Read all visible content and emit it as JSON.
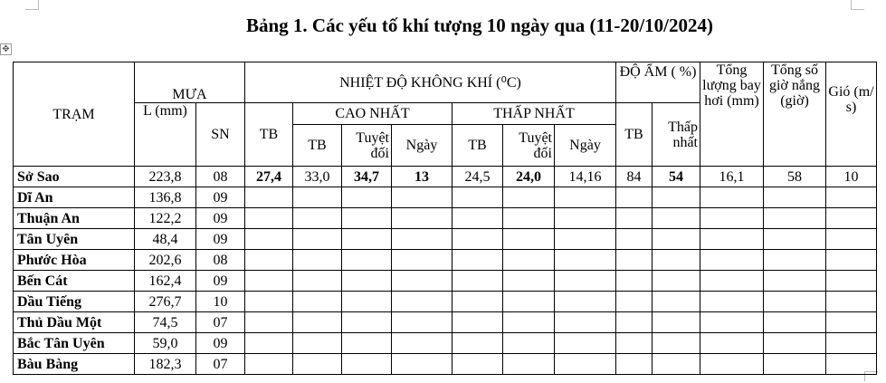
{
  "title": "Bảng 1. Các yếu tố khí tượng 10 ngày qua (11-20/10/2024)",
  "headers": {
    "tram": "TRẠM",
    "mua": "MƯA",
    "l_mm": "L (mm)",
    "sn": "SN",
    "nhiet_do": "NHIỆT ĐỘ KHÔNG KHÍ (⁰C)",
    "tb": "TB",
    "cao_nhat": "CAO NHẤT",
    "thap_nhat": "THẤP NHẤT",
    "tuyet_doi": "Tuyệt đối",
    "ngay": "Ngày",
    "do_am": "ĐỘ ẨM ( %)",
    "thap_nhat_am": "Thấp nhất",
    "bay_hoi": "Tổng lượng bay hơi (mm)",
    "gio_nang": "Tổng số giờ nắng (giờ)",
    "gio": "Gió (m/ s)"
  },
  "rows": [
    {
      "tram": "Sở Sao",
      "l": "223,8",
      "sn": "08",
      "tb": "27,4",
      "cao_tb": "33,0",
      "cao_td": "34,7",
      "cao_ngay": "13",
      "thap_tb": "24,5",
      "thap_td": "24,0",
      "thap_ngay": "14,16",
      "am_tb": "84",
      "am_min": "54",
      "bay_hoi": "16,1",
      "nang": "58",
      "gio": "10"
    },
    {
      "tram": "Dĩ An",
      "l": "136,8",
      "sn": "09"
    },
    {
      "tram": "Thuận An",
      "l": "122,2",
      "sn": "09"
    },
    {
      "tram": "Tân Uyên",
      "l": "48,4",
      "sn": "09"
    },
    {
      "tram": "Phước Hòa",
      "l": "202,6",
      "sn": "08"
    },
    {
      "tram": "Bến Cát",
      "l": "162,4",
      "sn": "09"
    },
    {
      "tram": "Dầu Tiếng",
      "l": "276,7",
      "sn": "10"
    },
    {
      "tram": "Thủ Dầu Một",
      "l": "74,5",
      "sn": "07"
    },
    {
      "tram": "Bắc Tân Uyên",
      "l": "59,0",
      "sn": "09"
    },
    {
      "tram": "Bàu Bàng",
      "l": "182,3",
      "sn": "07"
    }
  ]
}
